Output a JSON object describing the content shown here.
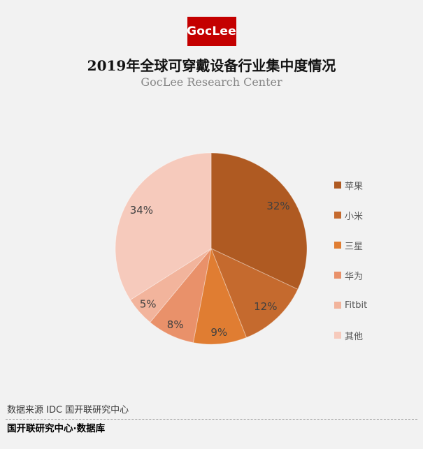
{
  "page": {
    "background_color": "#F2F2F2"
  },
  "logo": {
    "text": "GocLee",
    "background_color": "#C40000",
    "text_color": "#FFFFFF"
  },
  "header": {
    "title": "2019年全球可穿戴设备行业集中度情况",
    "subtitle": "GocLee Research Center"
  },
  "chart_data": {
    "type": "pie",
    "title": "2019年全球可穿戴设备行业集中度情况",
    "subtitle": "GocLee Research Center",
    "unit": "%",
    "direction": "clockwise",
    "start_angle_deg": 0,
    "legend_position": "right",
    "label_color": "#404040",
    "label_font_size": 15,
    "slices": [
      {
        "label": "苹果",
        "value": 32,
        "color": "#AF5A22"
      },
      {
        "label": "小米",
        "value": 12,
        "color": "#C56A2E"
      },
      {
        "label": "三星",
        "value": 9,
        "color": "#E07D32"
      },
      {
        "label": "华为",
        "value": 8,
        "color": "#E9916A"
      },
      {
        "label": "Fitbit",
        "value": 5,
        "color": "#F2B49C"
      },
      {
        "label": "其他",
        "value": 34,
        "color": "#F6CABC"
      }
    ]
  },
  "footer": {
    "source": "数据来源 IDC 国开联研究中心",
    "brand": "国开联研究中心·数据库"
  }
}
